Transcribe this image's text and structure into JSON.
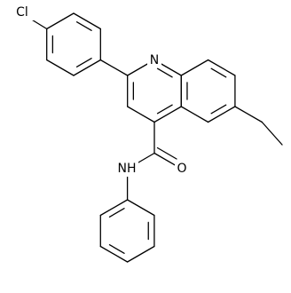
{
  "atoms": {
    "chlorine": "Cl",
    "nitrogen_ring": "N",
    "oxygen": "O",
    "amide_nh": "NH"
  }
}
